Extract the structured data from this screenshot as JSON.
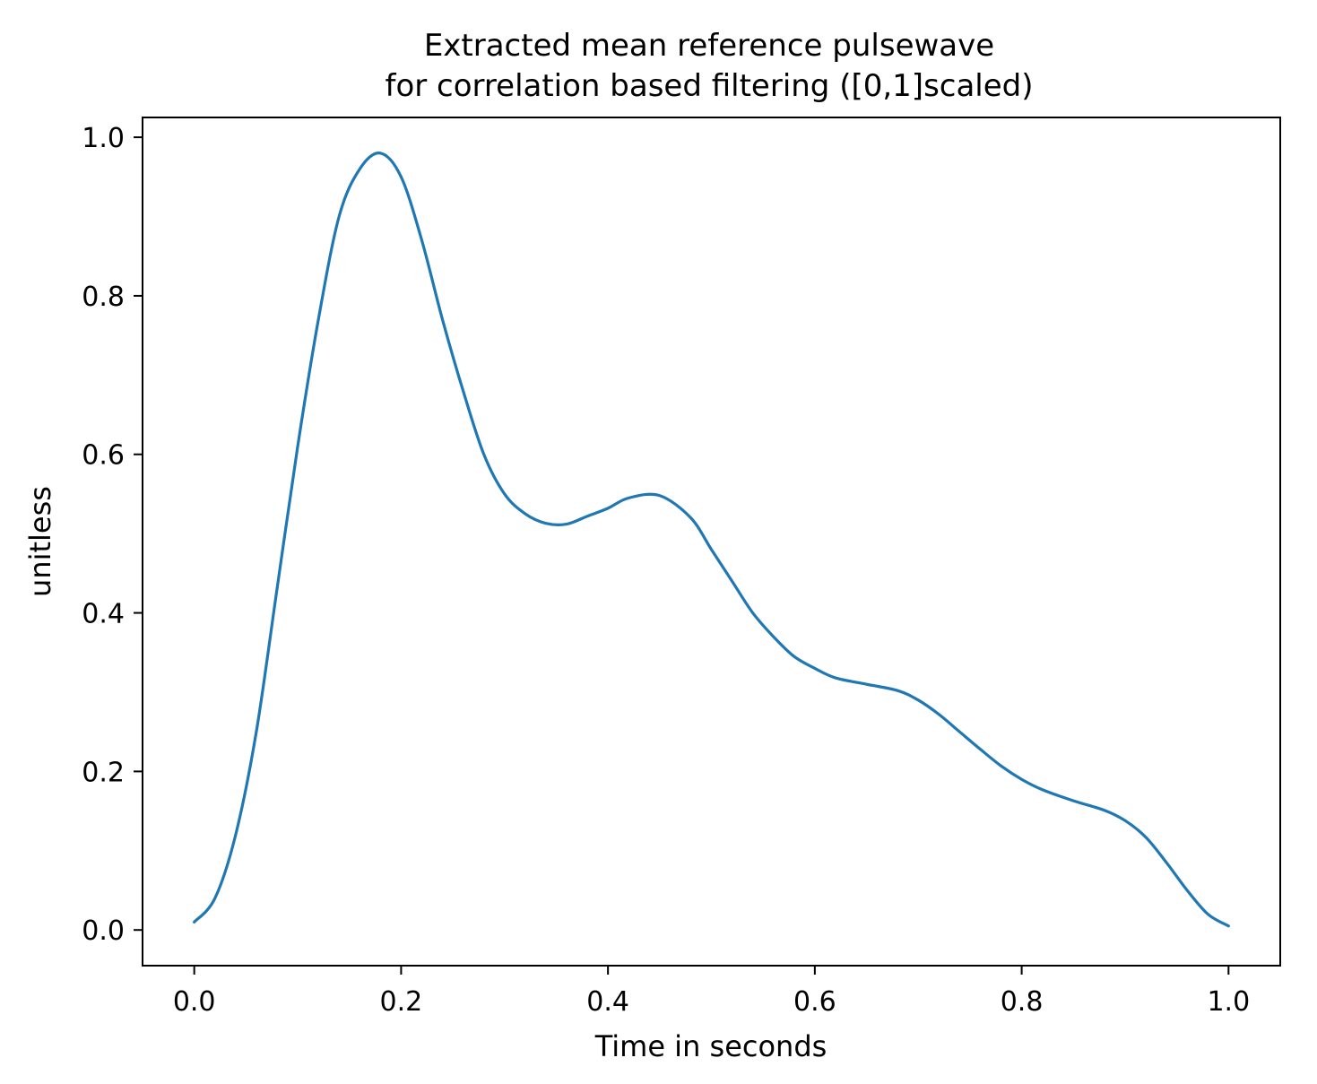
{
  "chart_data": {
    "type": "line",
    "title": [
      "Extracted mean reference pulsewave",
      "for correlation based filtering ([0,1]scaled)"
    ],
    "xlabel": "Time in seconds",
    "ylabel": "unitless",
    "xlim": [
      -0.05,
      1.05
    ],
    "ylim": [
      -0.045,
      1.025
    ],
    "xticks": [
      0.0,
      0.2,
      0.4,
      0.6,
      0.8,
      1.0
    ],
    "xtick_labels": [
      "0.0",
      "0.2",
      "0.4",
      "0.6",
      "0.8",
      "1.0"
    ],
    "yticks": [
      0.0,
      0.2,
      0.4,
      0.6,
      0.8,
      1.0
    ],
    "ytick_labels": [
      "0.0",
      "0.2",
      "0.4",
      "0.6",
      "0.8",
      "1.0"
    ],
    "grid": false,
    "series": [
      {
        "color": "#1f77b4",
        "x": [
          0.0,
          0.02,
          0.04,
          0.06,
          0.08,
          0.1,
          0.12,
          0.14,
          0.16,
          0.18,
          0.2,
          0.22,
          0.24,
          0.26,
          0.28,
          0.3,
          0.32,
          0.34,
          0.36,
          0.38,
          0.4,
          0.42,
          0.45,
          0.48,
          0.5,
          0.52,
          0.54,
          0.56,
          0.58,
          0.6,
          0.62,
          0.65,
          0.68,
          0.7,
          0.72,
          0.74,
          0.76,
          0.78,
          0.8,
          0.82,
          0.85,
          0.88,
          0.9,
          0.92,
          0.94,
          0.96,
          0.98,
          1.0
        ],
        "y": [
          0.01,
          0.04,
          0.12,
          0.25,
          0.43,
          0.61,
          0.77,
          0.9,
          0.96,
          0.98,
          0.95,
          0.87,
          0.77,
          0.68,
          0.6,
          0.55,
          0.525,
          0.513,
          0.512,
          0.522,
          0.532,
          0.545,
          0.548,
          0.52,
          0.48,
          0.44,
          0.4,
          0.37,
          0.345,
          0.33,
          0.318,
          0.31,
          0.302,
          0.29,
          0.272,
          0.25,
          0.228,
          0.207,
          0.19,
          0.177,
          0.163,
          0.151,
          0.138,
          0.117,
          0.085,
          0.05,
          0.02,
          0.005
        ]
      }
    ]
  }
}
